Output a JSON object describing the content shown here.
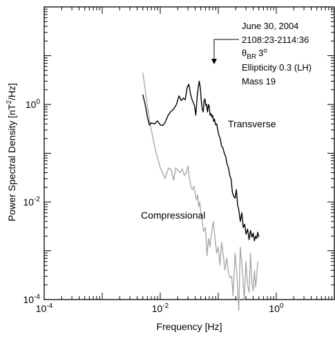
{
  "chart_data": {
    "type": "line",
    "xlabel": "Frequency [Hz]",
    "ylabel": "Power Spectral Density [nT²/Hz]",
    "ylabel_parts": {
      "base": "Power Spectral Density [nT",
      "sup": "2",
      "tail": "/Hz]"
    },
    "x_scale": "log",
    "y_scale": "log",
    "xlim": [
      0.0001,
      10
    ],
    "ylim": [
      0.0001,
      100
    ],
    "x_ticks": [
      {
        "base": "10",
        "exp": "-4",
        "value": 0.0001
      },
      {
        "base": "10",
        "exp": "-2",
        "value": 0.01
      },
      {
        "base": "10",
        "exp": "0",
        "value": 1
      }
    ],
    "y_ticks": [
      {
        "base": "10",
        "exp": "-4",
        "value": 0.0001
      },
      {
        "base": "10",
        "exp": "-2",
        "value": 0.01
      },
      {
        "base": "10",
        "exp": "0",
        "value": 1
      }
    ],
    "grid": false,
    "annotation": {
      "lines": [
        "June 30, 2004",
        "2108:23-2114:36",
        "Ellipticity 0.3 (LH)",
        "Mass 19"
      ],
      "theta": {
        "symbol": "θ",
        "sub": "BR",
        "value": "3",
        "deg": "o"
      },
      "arrow_point": [
        0.08,
        1.0
      ]
    },
    "series": [
      {
        "name": "Transverse",
        "color": "#000000",
        "x": [
          0.005,
          0.0055,
          0.006,
          0.0065,
          0.007,
          0.008,
          0.009,
          0.01,
          0.011,
          0.012,
          0.0135,
          0.015,
          0.017,
          0.019,
          0.021,
          0.023,
          0.025,
          0.027,
          0.029,
          0.031,
          0.033,
          0.035,
          0.037,
          0.039,
          0.041,
          0.043,
          0.045,
          0.047,
          0.049,
          0.051,
          0.053,
          0.055,
          0.057,
          0.059,
          0.061,
          0.063,
          0.065,
          0.068,
          0.07,
          0.072,
          0.075,
          0.078,
          0.08,
          0.083,
          0.086,
          0.09,
          0.094,
          0.098,
          0.102,
          0.108,
          0.114,
          0.12,
          0.127,
          0.134,
          0.142,
          0.15,
          0.158,
          0.166,
          0.175,
          0.185,
          0.195,
          0.205,
          0.215,
          0.225,
          0.24,
          0.255,
          0.27,
          0.285,
          0.3,
          0.32,
          0.34,
          0.36,
          0.38,
          0.4,
          0.42,
          0.44,
          0.46,
          0.48,
          0.5
        ],
        "y": [
          1.6,
          1.0,
          0.55,
          0.38,
          0.42,
          0.4,
          0.46,
          0.38,
          0.37,
          0.42,
          0.58,
          0.7,
          0.8,
          1.0,
          1.5,
          1.2,
          1.35,
          1.25,
          2.2,
          2.6,
          1.7,
          1.3,
          1.1,
          0.95,
          0.6,
          1.3,
          2.2,
          3.0,
          2.2,
          1.2,
          0.8,
          0.7,
          1.2,
          1.3,
          0.95,
          1.0,
          0.7,
          1.0,
          0.9,
          0.6,
          0.65,
          0.55,
          0.6,
          0.45,
          0.5,
          0.38,
          0.4,
          0.3,
          0.24,
          0.2,
          0.14,
          0.13,
          0.1,
          0.085,
          0.06,
          0.05,
          0.035,
          0.03,
          0.016,
          0.013,
          0.012,
          0.018,
          0.009,
          0.007,
          0.004,
          0.006,
          0.003,
          0.0035,
          0.0022,
          0.0028,
          0.0017,
          0.0026,
          0.0019,
          0.0023,
          0.0016,
          0.002,
          0.0018,
          0.0024,
          0.0019
        ]
      },
      {
        "name": "Compressional",
        "color": "#a9a9a9",
        "x": [
          0.005,
          0.0055,
          0.006,
          0.0065,
          0.007,
          0.0078,
          0.0085,
          0.0093,
          0.01,
          0.011,
          0.012,
          0.013,
          0.014,
          0.0155,
          0.017,
          0.0185,
          0.02,
          0.022,
          0.024,
          0.026,
          0.028,
          0.03,
          0.032,
          0.034,
          0.036,
          0.038,
          0.04,
          0.042,
          0.044,
          0.046,
          0.048,
          0.05,
          0.053,
          0.056,
          0.06,
          0.064,
          0.068,
          0.072,
          0.077,
          0.082,
          0.088,
          0.094,
          0.1,
          0.107,
          0.114,
          0.122,
          0.13,
          0.14,
          0.15,
          0.16,
          0.17,
          0.18,
          0.195,
          0.21,
          0.225,
          0.24,
          0.26,
          0.28,
          0.3,
          0.32,
          0.34,
          0.36,
          0.38,
          0.4,
          0.42,
          0.44,
          0.46,
          0.48
        ],
        "y": [
          4.5,
          2.0,
          0.9,
          0.5,
          0.3,
          0.16,
          0.1,
          0.07,
          0.05,
          0.04,
          0.03,
          0.04,
          0.05,
          0.045,
          0.028,
          0.05,
          0.045,
          0.04,
          0.048,
          0.035,
          0.04,
          0.055,
          0.03,
          0.02,
          0.018,
          0.021,
          0.015,
          0.011,
          0.014,
          0.008,
          0.01,
          0.006,
          0.004,
          0.0025,
          0.003,
          0.0008,
          0.0018,
          0.0012,
          0.0025,
          0.004,
          0.0018,
          0.0009,
          0.0012,
          0.0005,
          0.0015,
          0.0008,
          0.0004,
          0.0007,
          0.00035,
          0.00028,
          0.0003,
          0.00012,
          0.0009,
          0.0003,
          6e-05,
          0.0012,
          0.0004,
          0.0001,
          0.0006,
          0.0002,
          0.00014,
          0.0009,
          0.00022,
          0.00015,
          0.0004,
          0.00018,
          0.0003,
          0.0006
        ]
      }
    ]
  }
}
